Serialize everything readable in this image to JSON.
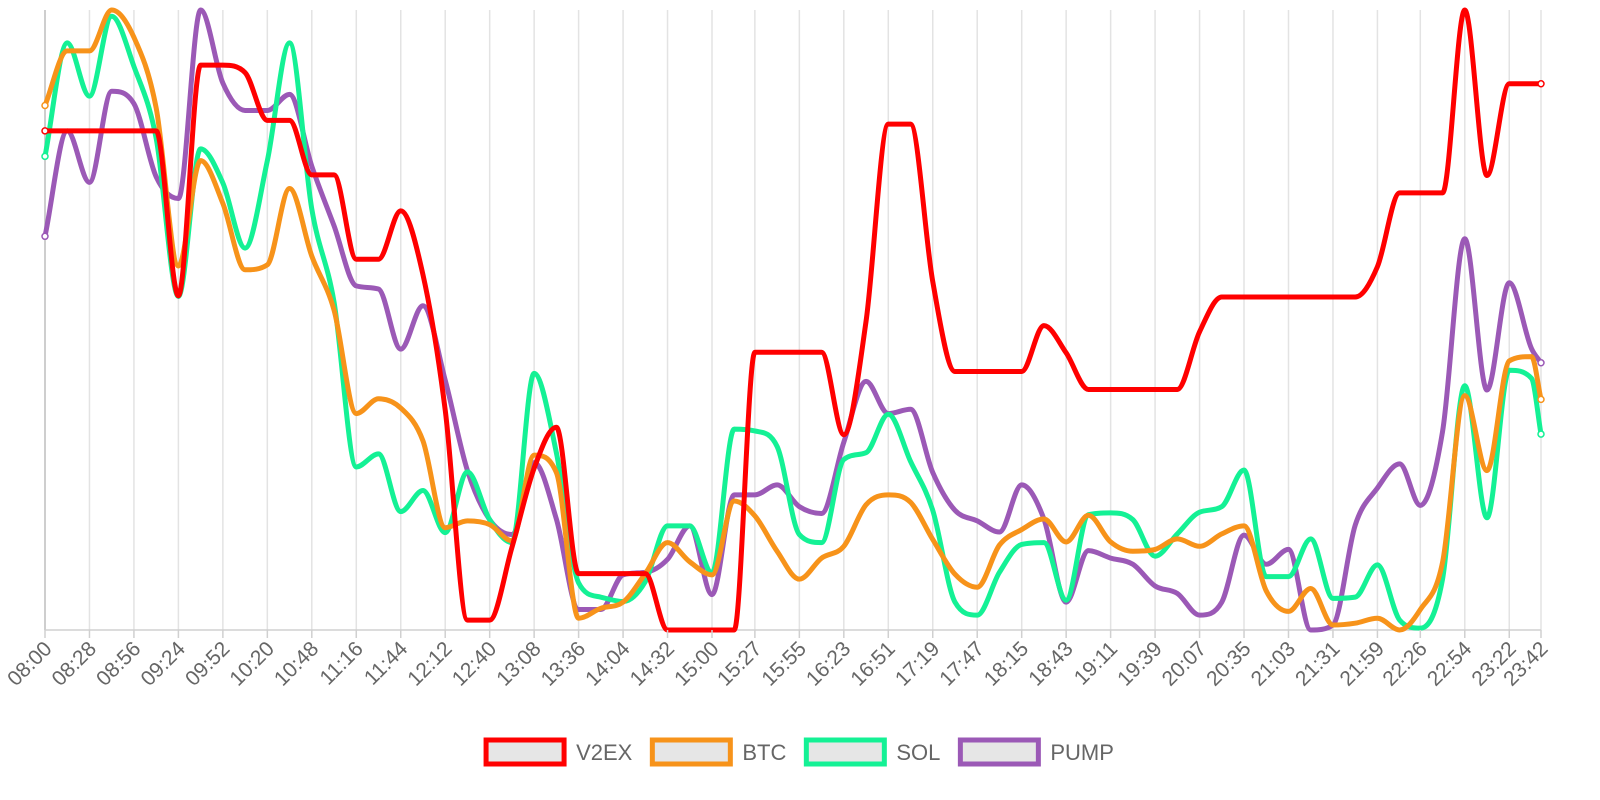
{
  "chart_data": {
    "type": "line",
    "x": [
      "08:00",
      "08:14",
      "08:28",
      "08:42",
      "08:56",
      "09:10",
      "09:24",
      "09:38",
      "09:52",
      "10:06",
      "10:20",
      "10:34",
      "10:48",
      "11:02",
      "11:16",
      "11:30",
      "11:44",
      "11:58",
      "12:12",
      "12:26",
      "12:40",
      "12:54",
      "13:08",
      "13:22",
      "13:36",
      "13:50",
      "14:04",
      "14:18",
      "14:32",
      "14:46",
      "15:00",
      "15:14",
      "15:27",
      "15:41",
      "15:55",
      "16:09",
      "16:23",
      "16:37",
      "16:51",
      "17:05",
      "17:19",
      "17:33",
      "17:47",
      "18:01",
      "18:15",
      "18:29",
      "18:43",
      "18:57",
      "19:11",
      "19:25",
      "19:39",
      "19:53",
      "20:07",
      "20:21",
      "20:35",
      "20:49",
      "21:03",
      "21:17",
      "21:31",
      "21:45",
      "21:59",
      "22:13",
      "22:26",
      "22:40",
      "22:54",
      "23:08",
      "23:22",
      "23:36",
      "23:42"
    ],
    "xticks": [
      "08:00",
      "08:28",
      "08:56",
      "09:24",
      "09:52",
      "10:20",
      "10:48",
      "11:16",
      "11:44",
      "12:12",
      "12:40",
      "13:08",
      "13:36",
      "14:04",
      "14:32",
      "15:00",
      "15:27",
      "15:55",
      "16:23",
      "16:51",
      "17:19",
      "17:47",
      "18:15",
      "18:43",
      "19:11",
      "19:39",
      "20:07",
      "20:35",
      "21:03",
      "21:31",
      "21:59",
      "22:26",
      "22:54",
      "23:22",
      "23:42"
    ],
    "ylim": [
      0,
      100
    ],
    "grid": "vertical",
    "legend": "bottom",
    "series": [
      {
        "name": "V2EX",
        "color": "#ff0000",
        "values": [
          80.5,
          80.5,
          80.5,
          80.5,
          80.5,
          80.5,
          53.9,
          91.1,
          91.1,
          89.9,
          82.2,
          82.2,
          73.4,
          73.4,
          59.8,
          59.8,
          67.6,
          57.3,
          35.5,
          1.6,
          1.6,
          13.3,
          26.1,
          32.7,
          9.1,
          9.1,
          9.1,
          9.1,
          0,
          0,
          0,
          0,
          44.8,
          44.8,
          44.8,
          44.8,
          31.5,
          49.8,
          81.6,
          81.6,
          56.2,
          41.7,
          41.7,
          41.7,
          41.7,
          49.1,
          44.7,
          38.8,
          38.8,
          38.8,
          38.8,
          38.8,
          48.1,
          53.7,
          53.7,
          53.7,
          53.7,
          53.7,
          53.7,
          53.7,
          58.6,
          70.5,
          70.5,
          70.5,
          100,
          73.3,
          88.1,
          88.1,
          88.1
        ]
      },
      {
        "name": "BTC",
        "color": "#f7931a",
        "values": [
          84.6,
          93.4,
          93.4,
          100,
          95.6,
          84.2,
          58.7,
          75.7,
          68.8,
          58.1,
          58.9,
          71.2,
          60.3,
          51.6,
          34.9,
          37.3,
          35.8,
          30.5,
          16.5,
          17.6,
          17,
          14.4,
          28.2,
          25.4,
          1.9,
          3.5,
          4.5,
          9.1,
          14.1,
          11,
          8.9,
          20.8,
          18.4,
          12.7,
          8.2,
          11.6,
          13.5,
          20.2,
          21.8,
          20.6,
          14.6,
          9,
          6.9,
          13.7,
          16.2,
          17.9,
          14.2,
          18.5,
          14.2,
          12.7,
          13,
          14.7,
          13.5,
          15.5,
          16.8,
          6.3,
          3,
          6.7,
          0.8,
          1.1,
          1.9,
          0,
          3.3,
          10.9,
          37.8,
          25.7,
          43.4,
          44.1,
          37.2
        ]
      },
      {
        "name": "SOL",
        "color": "#14f195",
        "values": [
          76.4,
          94.7,
          86.1,
          99,
          90.9,
          79.3,
          53.8,
          77.6,
          72.1,
          61.6,
          75.7,
          94.7,
          67.9,
          52.9,
          26.3,
          28.4,
          19.1,
          22.5,
          15.7,
          25.5,
          17.8,
          14.1,
          41.4,
          28.6,
          7.6,
          5.3,
          4.6,
          7.8,
          16.8,
          16.8,
          9.2,
          32.4,
          32.1,
          29.6,
          15.4,
          14.1,
          27.5,
          28.6,
          34.8,
          27.2,
          19.3,
          4.5,
          2.4,
          9.3,
          13.8,
          14.1,
          4.8,
          18.6,
          18.9,
          17.8,
          11.9,
          15.5,
          19,
          19.9,
          25.8,
          8.6,
          8.6,
          14.7,
          5.1,
          5.3,
          10.5,
          1.6,
          0.3,
          8.2,
          39.4,
          18.1,
          41.9,
          40.6,
          31.6
        ]
      },
      {
        "name": "PUMP",
        "color": "#9b59b6",
        "values": [
          63.5,
          80.5,
          72.2,
          86.9,
          84.9,
          73.1,
          69.6,
          100,
          88.2,
          83.8,
          83.8,
          86.4,
          74.8,
          65.2,
          55.5,
          55,
          45.3,
          52.3,
          40.3,
          25.7,
          17.8,
          15.4,
          27,
          17.9,
          3.3,
          3.3,
          8.9,
          9.3,
          11.4,
          16.8,
          5.7,
          21.8,
          21.8,
          23.4,
          19.9,
          18.8,
          30.3,
          40.1,
          34.9,
          35.6,
          25.4,
          19.3,
          17.6,
          15.8,
          23.4,
          17.9,
          4.5,
          12.8,
          11.6,
          10.6,
          7.1,
          5.9,
          2.4,
          4.5,
          15.3,
          10.6,
          13,
          0,
          0.8,
          16.9,
          22.9,
          26.8,
          20.1,
          32,
          63.1,
          38.7,
          56,
          45.4,
          43.1
        ]
      }
    ]
  }
}
